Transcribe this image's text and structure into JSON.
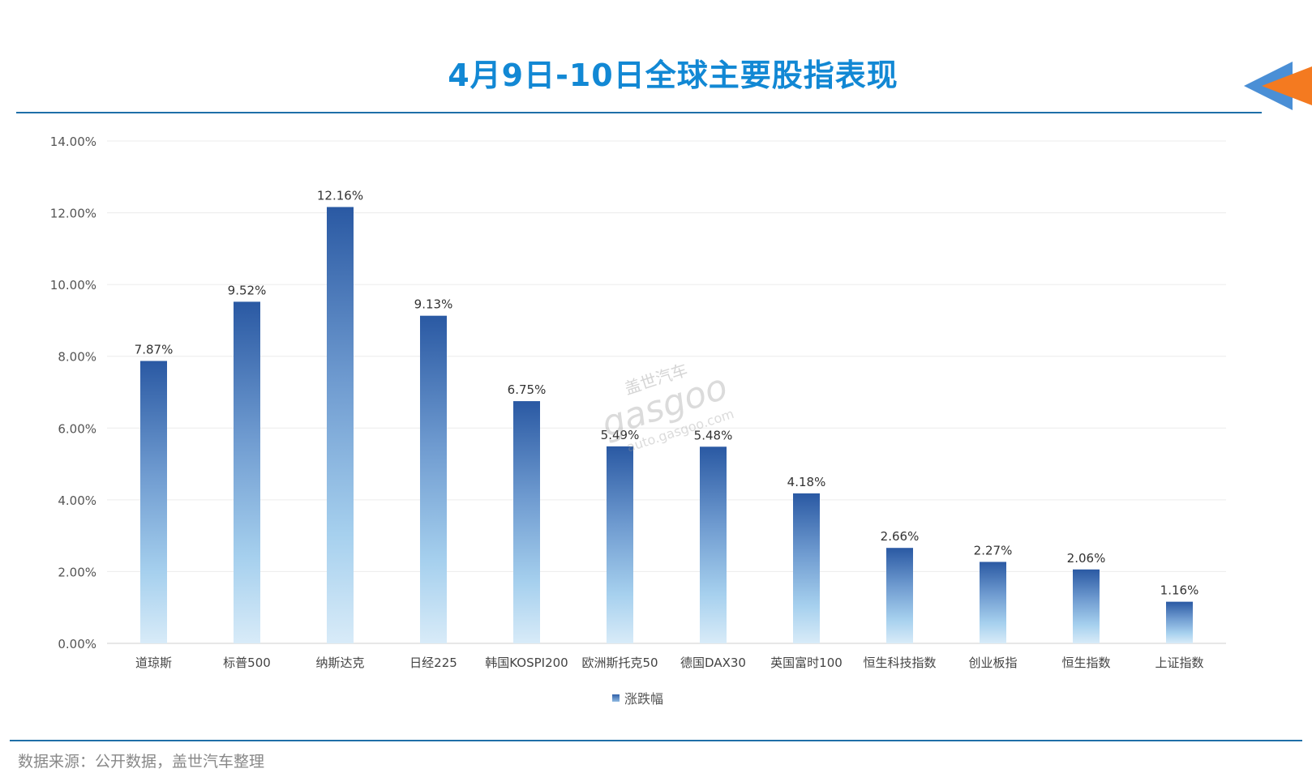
{
  "header": {
    "title": "4月9日-10日全球主要股指表现"
  },
  "footer": {
    "source": "数据来源：公开数据，盖世汽车整理"
  },
  "watermark": {
    "brand_cn": "盖世汽车",
    "brand": "gasgoo",
    "url": "auto.gasgoo.com"
  },
  "colors": {
    "title": "#1288d4",
    "rule": "#1f6fa8",
    "bar_top": "#2a59a3",
    "bar_bottom": "#d8ebf8",
    "logo_orange": "#f47a20",
    "logo_blue": "#4a8fd6"
  },
  "chart_data": {
    "type": "bar",
    "title": "4月9日-10日全球主要股指表现",
    "categories": [
      "道琼斯",
      "标普500",
      "纳斯达克",
      "日经225",
      "韩国KOSPI200",
      "欧洲斯托克50",
      "德国DAX30",
      "英国富时100",
      "恒生科技指数",
      "创业板指",
      "恒生指数",
      "上证指数"
    ],
    "series": [
      {
        "name": "涨跌幅",
        "values": [
          7.87,
          9.52,
          12.16,
          9.13,
          6.75,
          5.49,
          5.48,
          4.18,
          2.66,
          2.27,
          2.06,
          1.16
        ],
        "labels": [
          "7.87%",
          "9.52%",
          "12.16%",
          "9.13%",
          "6.75%",
          "5.49%",
          "5.48%",
          "4.18%",
          "2.66%",
          "2.27%",
          "2.06%",
          "1.16%"
        ]
      }
    ],
    "ylim": [
      0,
      14
    ],
    "yticks": [
      "0.00%",
      "2.00%",
      "4.00%",
      "6.00%",
      "8.00%",
      "10.00%",
      "12.00%",
      "14.00%"
    ],
    "grid": true,
    "legend": "bottom-center"
  }
}
